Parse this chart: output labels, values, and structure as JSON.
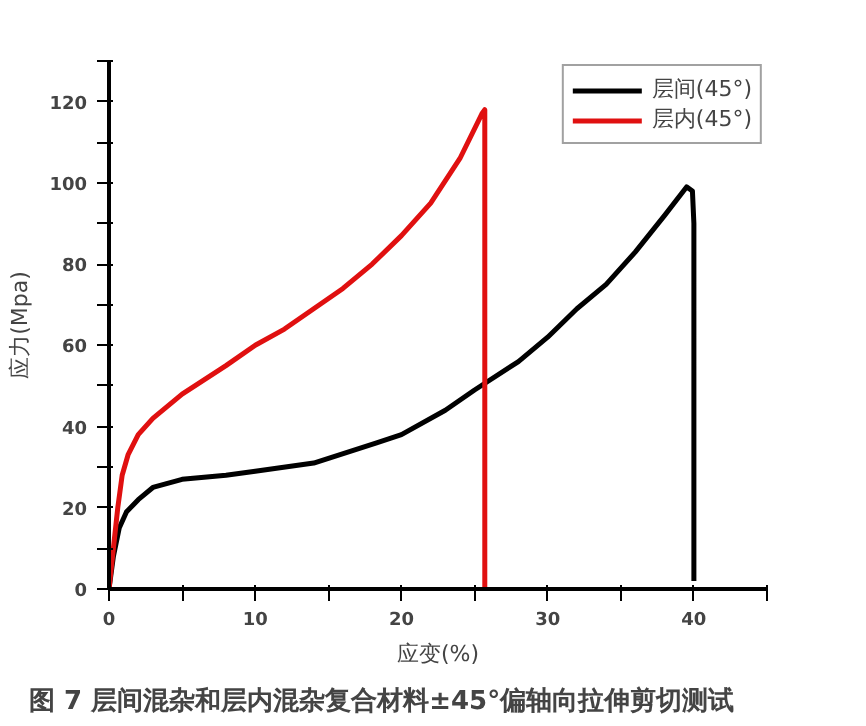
{
  "chart_data": {
    "type": "line",
    "xlabel": "应变(%)",
    "ylabel": "应力(Mpa)",
    "xlim": [
      0,
      45
    ],
    "ylim": [
      0,
      130
    ],
    "xticks": [
      0,
      {
        "value": 5,
        "label": null
      },
      10,
      {
        "value": 15,
        "label": null
      },
      20,
      {
        "value": 25,
        "label": null
      },
      30,
      {
        "value": 35,
        "label": null
      },
      40,
      {
        "value": 45,
        "label": null
      }
    ],
    "yticks": [
      0,
      {
        "value": 10,
        "label": null
      },
      20,
      {
        "value": 30,
        "label": null
      },
      40,
      {
        "value": 50,
        "label": null
      },
      60,
      {
        "value": 70,
        "label": null
      },
      80,
      {
        "value": 90,
        "label": null
      },
      100,
      {
        "value": 110,
        "label": null
      },
      120,
      {
        "value": 130,
        "label": null
      }
    ],
    "grid": false,
    "legend": "top right",
    "line_style": "solid",
    "annotations": [
      "图 7 层间混杂和层内混杂复合材料±45°偏轴向拉伸剪切测试"
    ],
    "series": [
      {
        "name": "层间(45°)",
        "color": "#000000",
        "x": [
          0,
          0.3,
          0.7,
          1.2,
          2,
          3,
          5,
          8,
          10,
          14,
          18.3,
          20,
          23,
          25,
          28,
          30,
          32,
          34,
          36,
          38,
          39.5,
          39.9,
          40,
          40,
          40
        ],
        "values": [
          0,
          8,
          15,
          19,
          22,
          25,
          27,
          28,
          29,
          31,
          36,
          38,
          44,
          49,
          56,
          62,
          69,
          75,
          83,
          92,
          99,
          98,
          90,
          60,
          2
        ]
      },
      {
        "name": "层内(45°)",
        "color": "#e01010",
        "x": [
          0,
          0.3,
          0.6,
          0.9,
          1.3,
          2,
          3,
          5,
          8,
          10,
          12,
          14,
          16,
          18,
          20,
          22,
          24,
          25.5,
          25.7,
          25.7,
          25.7
        ],
        "values": [
          0,
          10,
          20,
          28,
          33,
          38,
          42,
          48,
          55,
          60,
          64,
          69,
          74,
          80,
          87,
          95,
          106,
          117,
          118,
          60,
          0
        ]
      }
    ]
  }
}
